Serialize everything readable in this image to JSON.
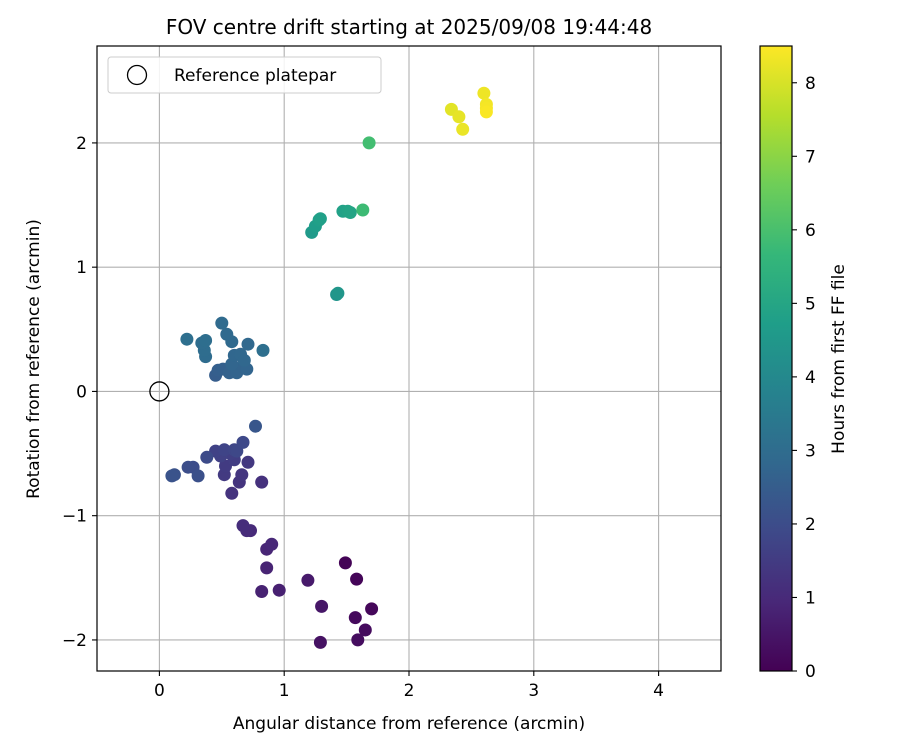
{
  "chart_data": {
    "type": "scatter",
    "title": "FOV centre drift starting at 2025/09/08 19:44:48",
    "xlabel": "Angular distance from reference (arcmin)",
    "ylabel": "Rotation from reference (arcmin)",
    "xlim": [
      -0.5,
      4.5
    ],
    "ylim": [
      -2.25,
      2.78
    ],
    "xticks": [
      0,
      1,
      2,
      3,
      4
    ],
    "yticks": [
      -2,
      -1,
      0,
      1,
      2
    ],
    "xtick_labels": [
      "0",
      "1",
      "2",
      "3",
      "4"
    ],
    "ytick_labels": [
      "−2",
      "−1",
      "0",
      "1",
      "2"
    ],
    "grid": true,
    "legend": {
      "position": "top-left",
      "entries": [
        "Reference platepar"
      ]
    },
    "reference_point": {
      "x": 0,
      "y": 0,
      "label": "Reference platepar"
    },
    "colorbar": {
      "label": "Hours from first FF file",
      "range": [
        0,
        8.5
      ],
      "ticks": [
        0,
        1,
        2,
        3,
        4,
        5,
        6,
        7,
        8
      ],
      "tick_labels": [
        "0",
        "1",
        "2",
        "3",
        "4",
        "5",
        "6",
        "7",
        "8"
      ],
      "colormap": "viridis"
    },
    "colormap_stops": [
      "#440154",
      "#482878",
      "#3e4989",
      "#31688e",
      "#26828e",
      "#1f9e89",
      "#35b779",
      "#6ece58",
      "#b5de2b",
      "#fde725"
    ],
    "points": [
      {
        "x": 1.49,
        "y": -1.38,
        "h": 0.05
      },
      {
        "x": 1.58,
        "y": -1.51,
        "h": 0.1
      },
      {
        "x": 1.7,
        "y": -1.75,
        "h": 0.15
      },
      {
        "x": 1.57,
        "y": -1.82,
        "h": 0.2
      },
      {
        "x": 1.65,
        "y": -1.92,
        "h": 0.25
      },
      {
        "x": 1.59,
        "y": -2.0,
        "h": 0.3
      },
      {
        "x": 1.29,
        "y": -2.02,
        "h": 0.4
      },
      {
        "x": 1.3,
        "y": -1.73,
        "h": 0.5
      },
      {
        "x": 1.19,
        "y": -1.52,
        "h": 0.6
      },
      {
        "x": 0.96,
        "y": -1.6,
        "h": 0.75
      },
      {
        "x": 0.82,
        "y": -1.61,
        "h": 0.8
      },
      {
        "x": 0.86,
        "y": -1.42,
        "h": 0.85
      },
      {
        "x": 0.86,
        "y": -1.27,
        "h": 0.9
      },
      {
        "x": 0.9,
        "y": -1.23,
        "h": 0.95
      },
      {
        "x": 0.73,
        "y": -1.12,
        "h": 1.0
      },
      {
        "x": 0.7,
        "y": -1.12,
        "h": 1.05
      },
      {
        "x": 0.67,
        "y": -1.08,
        "h": 1.1
      },
      {
        "x": 0.82,
        "y": -0.73,
        "h": 1.2
      },
      {
        "x": 0.58,
        "y": -0.82,
        "h": 1.25
      },
      {
        "x": 0.64,
        "y": -0.73,
        "h": 1.3
      },
      {
        "x": 0.66,
        "y": -0.67,
        "h": 1.35
      },
      {
        "x": 0.71,
        "y": -0.57,
        "h": 1.4
      },
      {
        "x": 0.52,
        "y": -0.67,
        "h": 1.45
      },
      {
        "x": 0.53,
        "y": -0.6,
        "h": 1.5
      },
      {
        "x": 0.6,
        "y": -0.55,
        "h": 1.55
      },
      {
        "x": 0.57,
        "y": -0.5,
        "h": 1.6
      },
      {
        "x": 0.49,
        "y": -0.52,
        "h": 1.65
      },
      {
        "x": 0.45,
        "y": -0.48,
        "h": 1.7
      },
      {
        "x": 0.52,
        "y": -0.47,
        "h": 1.75
      },
      {
        "x": 0.6,
        "y": -0.47,
        "h": 1.8
      },
      {
        "x": 0.62,
        "y": -0.48,
        "h": 1.85
      },
      {
        "x": 0.67,
        "y": -0.41,
        "h": 1.9
      },
      {
        "x": 0.38,
        "y": -0.53,
        "h": 1.95
      },
      {
        "x": 0.27,
        "y": -0.61,
        "h": 2.0
      },
      {
        "x": 0.23,
        "y": -0.61,
        "h": 2.05
      },
      {
        "x": 0.31,
        "y": -0.68,
        "h": 2.1
      },
      {
        "x": 0.12,
        "y": -0.67,
        "h": 2.15
      },
      {
        "x": 0.1,
        "y": -0.68,
        "h": 2.2
      },
      {
        "x": 0.77,
        "y": -0.28,
        "h": 2.3
      },
      {
        "x": 0.45,
        "y": 0.13,
        "h": 2.5
      },
      {
        "x": 0.47,
        "y": 0.17,
        "h": 2.55
      },
      {
        "x": 0.51,
        "y": 0.18,
        "h": 2.6
      },
      {
        "x": 0.56,
        "y": 0.15,
        "h": 2.65
      },
      {
        "x": 0.62,
        "y": 0.15,
        "h": 2.7
      },
      {
        "x": 0.67,
        "y": 0.2,
        "h": 2.72
      },
      {
        "x": 0.7,
        "y": 0.18,
        "h": 2.75
      },
      {
        "x": 0.58,
        "y": 0.22,
        "h": 2.77
      },
      {
        "x": 0.6,
        "y": 0.29,
        "h": 2.8
      },
      {
        "x": 0.65,
        "y": 0.3,
        "h": 2.82
      },
      {
        "x": 0.68,
        "y": 0.25,
        "h": 2.85
      },
      {
        "x": 0.71,
        "y": 0.38,
        "h": 2.87
      },
      {
        "x": 0.58,
        "y": 0.4,
        "h": 2.9
      },
      {
        "x": 0.54,
        "y": 0.46,
        "h": 2.92
      },
      {
        "x": 0.5,
        "y": 0.55,
        "h": 2.95
      },
      {
        "x": 0.37,
        "y": 0.28,
        "h": 2.97
      },
      {
        "x": 0.36,
        "y": 0.33,
        "h": 3.0
      },
      {
        "x": 0.34,
        "y": 0.39,
        "h": 3.02
      },
      {
        "x": 0.37,
        "y": 0.41,
        "h": 3.05
      },
      {
        "x": 0.22,
        "y": 0.42,
        "h": 3.07
      },
      {
        "x": 0.83,
        "y": 0.33,
        "h": 3.1
      },
      {
        "x": 1.42,
        "y": 0.78,
        "h": 4.4
      },
      {
        "x": 1.43,
        "y": 0.79,
        "h": 4.45
      },
      {
        "x": 1.22,
        "y": 1.28,
        "h": 4.6
      },
      {
        "x": 1.25,
        "y": 1.33,
        "h": 4.7
      },
      {
        "x": 1.28,
        "y": 1.38,
        "h": 4.75
      },
      {
        "x": 1.29,
        "y": 1.39,
        "h": 4.8
      },
      {
        "x": 1.47,
        "y": 1.45,
        "h": 4.85
      },
      {
        "x": 1.51,
        "y": 1.45,
        "h": 4.9
      },
      {
        "x": 1.53,
        "y": 1.44,
        "h": 4.95
      },
      {
        "x": 1.63,
        "y": 1.46,
        "h": 5.8
      },
      {
        "x": 1.68,
        "y": 2.0,
        "h": 5.9
      },
      {
        "x": 2.34,
        "y": 2.27,
        "h": 8.15
      },
      {
        "x": 2.4,
        "y": 2.21,
        "h": 8.2
      },
      {
        "x": 2.43,
        "y": 2.11,
        "h": 8.25
      },
      {
        "x": 2.6,
        "y": 2.4,
        "h": 8.3
      },
      {
        "x": 2.62,
        "y": 2.31,
        "h": 8.35
      },
      {
        "x": 2.62,
        "y": 2.28,
        "h": 8.4
      },
      {
        "x": 2.62,
        "y": 2.25,
        "h": 8.45
      }
    ]
  }
}
